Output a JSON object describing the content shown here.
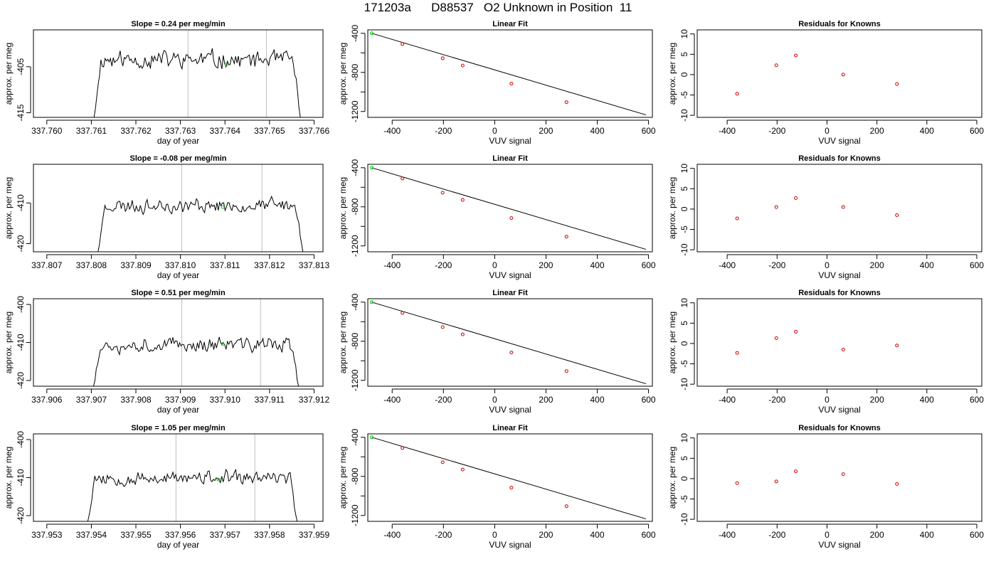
{
  "figure": {
    "title": "171203a      D88537   O2 Unknown in Position  11"
  },
  "colors": {
    "trace": "#000000",
    "marker_unknown": "#00cc00",
    "marker_known": "#cc0000",
    "vline": "#bfbfbf",
    "fit_line": "#000000"
  },
  "chart_data": [
    {
      "type": "line",
      "row": 1,
      "col": 1,
      "title": "Slope =  0.24  per meg/min",
      "xlabel": "day of year",
      "ylabel": "approx. per meg",
      "xlim": [
        337.7597,
        337.7662
      ],
      "ylim": [
        -416,
        -397
      ],
      "xticks": [
        337.76,
        337.761,
        337.762,
        337.763,
        337.764,
        337.765,
        337.766
      ],
      "xtick_labels": [
        "337.760",
        "337.761",
        "337.762",
        "337.763",
        "337.764",
        "337.765",
        "337.766"
      ],
      "yticks": [
        -405,
        -415
      ],
      "ytick_labels": [
        "-405",
        "-415"
      ],
      "vlines": [
        337.76317,
        337.76493
      ],
      "trace": {
        "x_start": 337.76106,
        "x_end": 337.76569,
        "y_mean": -403.5,
        "amplitude": 2.3,
        "seed": 11,
        "drop_to": -416
      },
      "marker": {
        "x": 337.76403,
        "y": -404.5
      }
    },
    {
      "type": "scatter",
      "row": 1,
      "col": 2,
      "title": "Linear Fit",
      "xlabel": "VUV signal",
      "ylabel": "approx. per meg",
      "xlim": [
        -495,
        615
      ],
      "ylim": [
        -1260,
        -365
      ],
      "xticks": [
        -400,
        -200,
        0,
        200,
        400,
        600
      ],
      "xtick_labels": [
        "-400",
        "-200",
        "0",
        "200",
        "400",
        "600"
      ],
      "yticks": [
        -400,
        -800,
        -1200
      ],
      "ytick_labels": [
        "-400",
        "-800",
        "-1200"
      ],
      "minor_yticks": [
        -600,
        -1000
      ],
      "unknown": {
        "x": -480,
        "y": -400
      },
      "knowns": {
        "x": [
          -360,
          -203,
          -125,
          65,
          280
        ],
        "y": [
          -510,
          -655,
          -730,
          -915,
          -1105
        ]
      },
      "fit": {
        "x": [
          -480,
          590
        ],
        "y": [
          -400,
          -1235
        ]
      }
    },
    {
      "type": "scatter",
      "row": 1,
      "col": 3,
      "title": "Residuals for Knowns",
      "xlabel": "VUV signal",
      "ylabel": "approx. per meg",
      "xlim": [
        -520,
        620
      ],
      "ylim": [
        -10.5,
        11
      ],
      "xticks": [
        -400,
        -200,
        0,
        200,
        400,
        600
      ],
      "xtick_labels": [
        "-400",
        "-200",
        "0",
        "200",
        "400",
        "600"
      ],
      "yticks": [
        10,
        5,
        0,
        -5,
        -10
      ],
      "ytick_labels": [
        "10",
        "5",
        "0",
        "-5",
        "-10"
      ],
      "x": [
        -360,
        -203,
        -125,
        65,
        280
      ],
      "y": [
        -4.7,
        2.3,
        4.7,
        0,
        -2.3
      ]
    },
    {
      "type": "line",
      "row": 2,
      "col": 1,
      "title": "Slope =  -0.08  per meg/min",
      "xlabel": "day of year",
      "ylabel": "approx. per meg",
      "xlim": [
        337.8067,
        337.8132
      ],
      "ylim": [
        -422,
        -400.5
      ],
      "xticks": [
        337.807,
        337.808,
        337.809,
        337.81,
        337.811,
        337.812,
        337.813
      ],
      "xtick_labels": [
        "337.807",
        "337.808",
        "337.809",
        "337.810",
        "337.811",
        "337.812",
        "337.813"
      ],
      "yticks": [
        -410,
        -420
      ],
      "ytick_labels": [
        "-410",
        "-420"
      ],
      "vlines": [
        337.81003,
        337.81183
      ],
      "trace": {
        "x_start": 337.80815,
        "x_end": 337.81275,
        "y_mean": -410.6,
        "amplitude": 2.2,
        "seed": 23,
        "drop_to": -422
      },
      "marker": {
        "x": 337.81095,
        "y": -411
      }
    },
    {
      "type": "scatter",
      "row": 2,
      "col": 2,
      "title": "Linear Fit",
      "xlabel": "VUV signal",
      "ylabel": "approx. per meg",
      "xlim": [
        -495,
        615
      ],
      "ylim": [
        -1260,
        -365
      ],
      "xticks": [
        -400,
        -200,
        0,
        200,
        400,
        600
      ],
      "xtick_labels": [
        "-400",
        "-200",
        "0",
        "200",
        "400",
        "600"
      ],
      "yticks": [
        -400,
        -800,
        -1200
      ],
      "ytick_labels": [
        "-400",
        "-800",
        "-1200"
      ],
      "minor_yticks": [
        -600,
        -1000
      ],
      "unknown": {
        "x": -480,
        "y": -400
      },
      "knowns": {
        "x": [
          -360,
          -203,
          -125,
          65,
          280
        ],
        "y": [
          -510,
          -655,
          -730,
          -915,
          -1105
        ]
      },
      "fit": {
        "x": [
          -480,
          590
        ],
        "y": [
          -400,
          -1235
        ]
      }
    },
    {
      "type": "scatter",
      "row": 2,
      "col": 3,
      "title": "Residuals for Knowns",
      "xlabel": "VUV signal",
      "ylabel": "approx. per meg",
      "xlim": [
        -520,
        620
      ],
      "ylim": [
        -10.5,
        11
      ],
      "xticks": [
        -400,
        -200,
        0,
        200,
        400,
        600
      ],
      "xtick_labels": [
        "-400",
        "-200",
        "0",
        "200",
        "400",
        "600"
      ],
      "yticks": [
        10,
        5,
        0,
        -5,
        -10
      ],
      "ytick_labels": [
        "10",
        "5",
        "0",
        "-5",
        "-10"
      ],
      "x": [
        -360,
        -203,
        -125,
        65,
        280
      ],
      "y": [
        -2.3,
        0.5,
        2.7,
        0.5,
        -1.5
      ]
    },
    {
      "type": "line",
      "row": 3,
      "col": 1,
      "title": "Slope =  0.51  per meg/min",
      "xlabel": "day of year",
      "ylabel": "approx. per meg",
      "xlim": [
        337.9057,
        337.9122
      ],
      "ylim": [
        -421.5,
        -398.5
      ],
      "xticks": [
        337.906,
        337.907,
        337.908,
        337.909,
        337.91,
        337.911,
        337.912
      ],
      "xtick_labels": [
        "337.906",
        "337.907",
        "337.908",
        "337.909",
        "337.910",
        "337.911",
        "337.912"
      ],
      "yticks": [
        -400,
        -410,
        -420
      ],
      "ytick_labels": [
        "-400",
        "-410",
        "-420"
      ],
      "vlines": [
        337.90903,
        337.9108
      ],
      "trace": {
        "x_start": 337.90705,
        "x_end": 337.91165,
        "y_mean": -410.6,
        "amplitude": 2.3,
        "seed": 37,
        "drop_to": -421.5
      },
      "marker": {
        "x": 337.90995,
        "y": -410.4
      }
    },
    {
      "type": "scatter",
      "row": 3,
      "col": 2,
      "title": "Linear Fit",
      "xlabel": "VUV signal",
      "ylabel": "approx. per meg",
      "xlim": [
        -495,
        615
      ],
      "ylim": [
        -1260,
        -365
      ],
      "xticks": [
        -400,
        -200,
        0,
        200,
        400,
        600
      ],
      "xtick_labels": [
        "-400",
        "-200",
        "0",
        "200",
        "400",
        "600"
      ],
      "yticks": [
        -400,
        -800,
        -1200
      ],
      "ytick_labels": [
        "-400",
        "-800",
        "-1200"
      ],
      "minor_yticks": [
        -600,
        -1000
      ],
      "unknown": {
        "x": -480,
        "y": -400
      },
      "knowns": {
        "x": [
          -360,
          -203,
          -125,
          65,
          280
        ],
        "y": [
          -510,
          -655,
          -730,
          -915,
          -1105
        ]
      },
      "fit": {
        "x": [
          -480,
          590
        ],
        "y": [
          -400,
          -1235
        ]
      }
    },
    {
      "type": "scatter",
      "row": 3,
      "col": 3,
      "title": "Residuals for Knowns",
      "xlabel": "VUV signal",
      "ylabel": "approx. per meg",
      "xlim": [
        -520,
        620
      ],
      "ylim": [
        -10.5,
        11
      ],
      "xticks": [
        -400,
        -200,
        0,
        200,
        400,
        600
      ],
      "xtick_labels": [
        "-400",
        "-200",
        "0",
        "200",
        "400",
        "600"
      ],
      "yticks": [
        10,
        5,
        0,
        -5,
        -10
      ],
      "ytick_labels": [
        "10",
        "5",
        "0",
        "-5",
        "-10"
      ],
      "x": [
        -360,
        -203,
        -125,
        65,
        280
      ],
      "y": [
        -2.3,
        1.3,
        2.9,
        -1.5,
        -0.5
      ]
    },
    {
      "type": "line",
      "row": 4,
      "col": 1,
      "title": "Slope =  1.05  per meg/min",
      "xlabel": "day of year",
      "ylabel": "approx. per meg",
      "xlim": [
        337.9527,
        337.9592
      ],
      "ylim": [
        -421.5,
        -398.5
      ],
      "xticks": [
        337.953,
        337.954,
        337.955,
        337.956,
        337.957,
        337.958,
        337.959
      ],
      "xtick_labels": [
        "337.953",
        "337.954",
        "337.955",
        "337.956",
        "337.957",
        "337.958",
        "337.959"
      ],
      "yticks": [
        -400,
        -410,
        -420
      ],
      "ytick_labels": [
        "-400",
        "-410",
        "-420"
      ],
      "vlines": [
        337.9559,
        337.95767
      ],
      "trace": {
        "x_start": 337.95392,
        "x_end": 337.95862,
        "y_mean": -410.2,
        "amplitude": 2.2,
        "seed": 53,
        "drop_to": -421.5
      },
      "marker": {
        "x": 337.95685,
        "y": -410.5
      }
    },
    {
      "type": "scatter",
      "row": 4,
      "col": 2,
      "title": "Linear Fit",
      "xlabel": "VUV signal",
      "ylabel": "approx. per meg",
      "xlim": [
        -495,
        615
      ],
      "ylim": [
        -1260,
        -365
      ],
      "xticks": [
        -400,
        -200,
        0,
        200,
        400,
        600
      ],
      "xtick_labels": [
        "-400",
        "-200",
        "0",
        "200",
        "400",
        "600"
      ],
      "yticks": [
        -400,
        -800,
        -1200
      ],
      "ytick_labels": [
        "-400",
        "-800",
        "-1200"
      ],
      "minor_yticks": [
        -600,
        -1000
      ],
      "unknown": {
        "x": -480,
        "y": -400
      },
      "knowns": {
        "x": [
          -360,
          -203,
          -125,
          65,
          280
        ],
        "y": [
          -510,
          -655,
          -730,
          -915,
          -1105
        ]
      },
      "fit": {
        "x": [
          -480,
          590
        ],
        "y": [
          -400,
          -1235
        ]
      }
    },
    {
      "type": "scatter",
      "row": 4,
      "col": 3,
      "title": "Residuals for Knowns",
      "xlabel": "VUV signal",
      "ylabel": "approx. per meg",
      "xlim": [
        -520,
        620
      ],
      "ylim": [
        -10.5,
        11
      ],
      "xticks": [
        -400,
        -200,
        0,
        200,
        400,
        600
      ],
      "xtick_labels": [
        "-400",
        "-200",
        "0",
        "200",
        "400",
        "600"
      ],
      "yticks": [
        10,
        5,
        0,
        -5,
        -10
      ],
      "ytick_labels": [
        "10",
        "5",
        "0",
        "-5",
        "-10"
      ],
      "x": [
        -360,
        -203,
        -125,
        65,
        280
      ],
      "y": [
        -1.1,
        -0.7,
        1.8,
        1.1,
        -1.3
      ]
    }
  ]
}
